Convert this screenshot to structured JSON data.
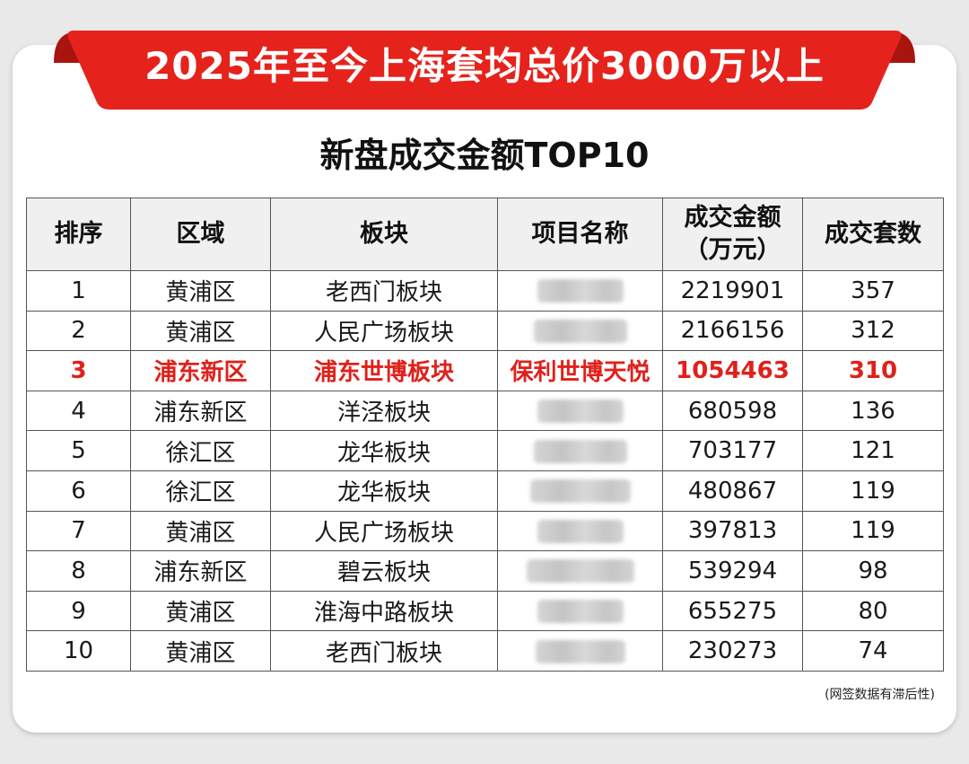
{
  "banner": {
    "title": "2025年至今上海套均总价3000万以上",
    "color": "#e5231c"
  },
  "subtitle": "新盘成交金额TOP10",
  "table": {
    "headers": [
      "排序",
      "区域",
      "板块",
      "项目名称",
      "成交金额\n（万元）",
      "成交套数"
    ],
    "highlight_color": "#e0201b",
    "rows": [
      {
        "rank": "1",
        "district": "黄浦区",
        "block": "老西门板块",
        "project": "",
        "amount": "2219901",
        "units": "357",
        "highlight": false
      },
      {
        "rank": "2",
        "district": "黄浦区",
        "block": "人民广场板块",
        "project": "",
        "amount": "2166156",
        "units": "312",
        "highlight": false
      },
      {
        "rank": "3",
        "district": "浦东新区",
        "block": "浦东世博板块",
        "project": "保利世博天悦",
        "amount": "1054463",
        "units": "310",
        "highlight": true
      },
      {
        "rank": "4",
        "district": "浦东新区",
        "block": "洋泾板块",
        "project": "",
        "amount": "680598",
        "units": "136",
        "highlight": false
      },
      {
        "rank": "5",
        "district": "徐汇区",
        "block": "龙华板块",
        "project": "",
        "amount": "703177",
        "units": "121",
        "highlight": false
      },
      {
        "rank": "6",
        "district": "徐汇区",
        "block": "龙华板块",
        "project": "",
        "amount": "480867",
        "units": "119",
        "highlight": false
      },
      {
        "rank": "7",
        "district": "黄浦区",
        "block": "人民广场板块",
        "project": "",
        "amount": "397813",
        "units": "119",
        "highlight": false
      },
      {
        "rank": "8",
        "district": "浦东新区",
        "block": "碧云板块",
        "project": "",
        "amount": "539294",
        "units": "98",
        "highlight": false
      },
      {
        "rank": "9",
        "district": "黄浦区",
        "block": "淮海中路板块",
        "project": "",
        "amount": "655275",
        "units": "80",
        "highlight": false
      },
      {
        "rank": "10",
        "district": "黄浦区",
        "block": "老西门板块",
        "project": "",
        "amount": "230273",
        "units": "74",
        "highlight": false
      }
    ]
  },
  "footnote": "(网签数据有滞后性)"
}
